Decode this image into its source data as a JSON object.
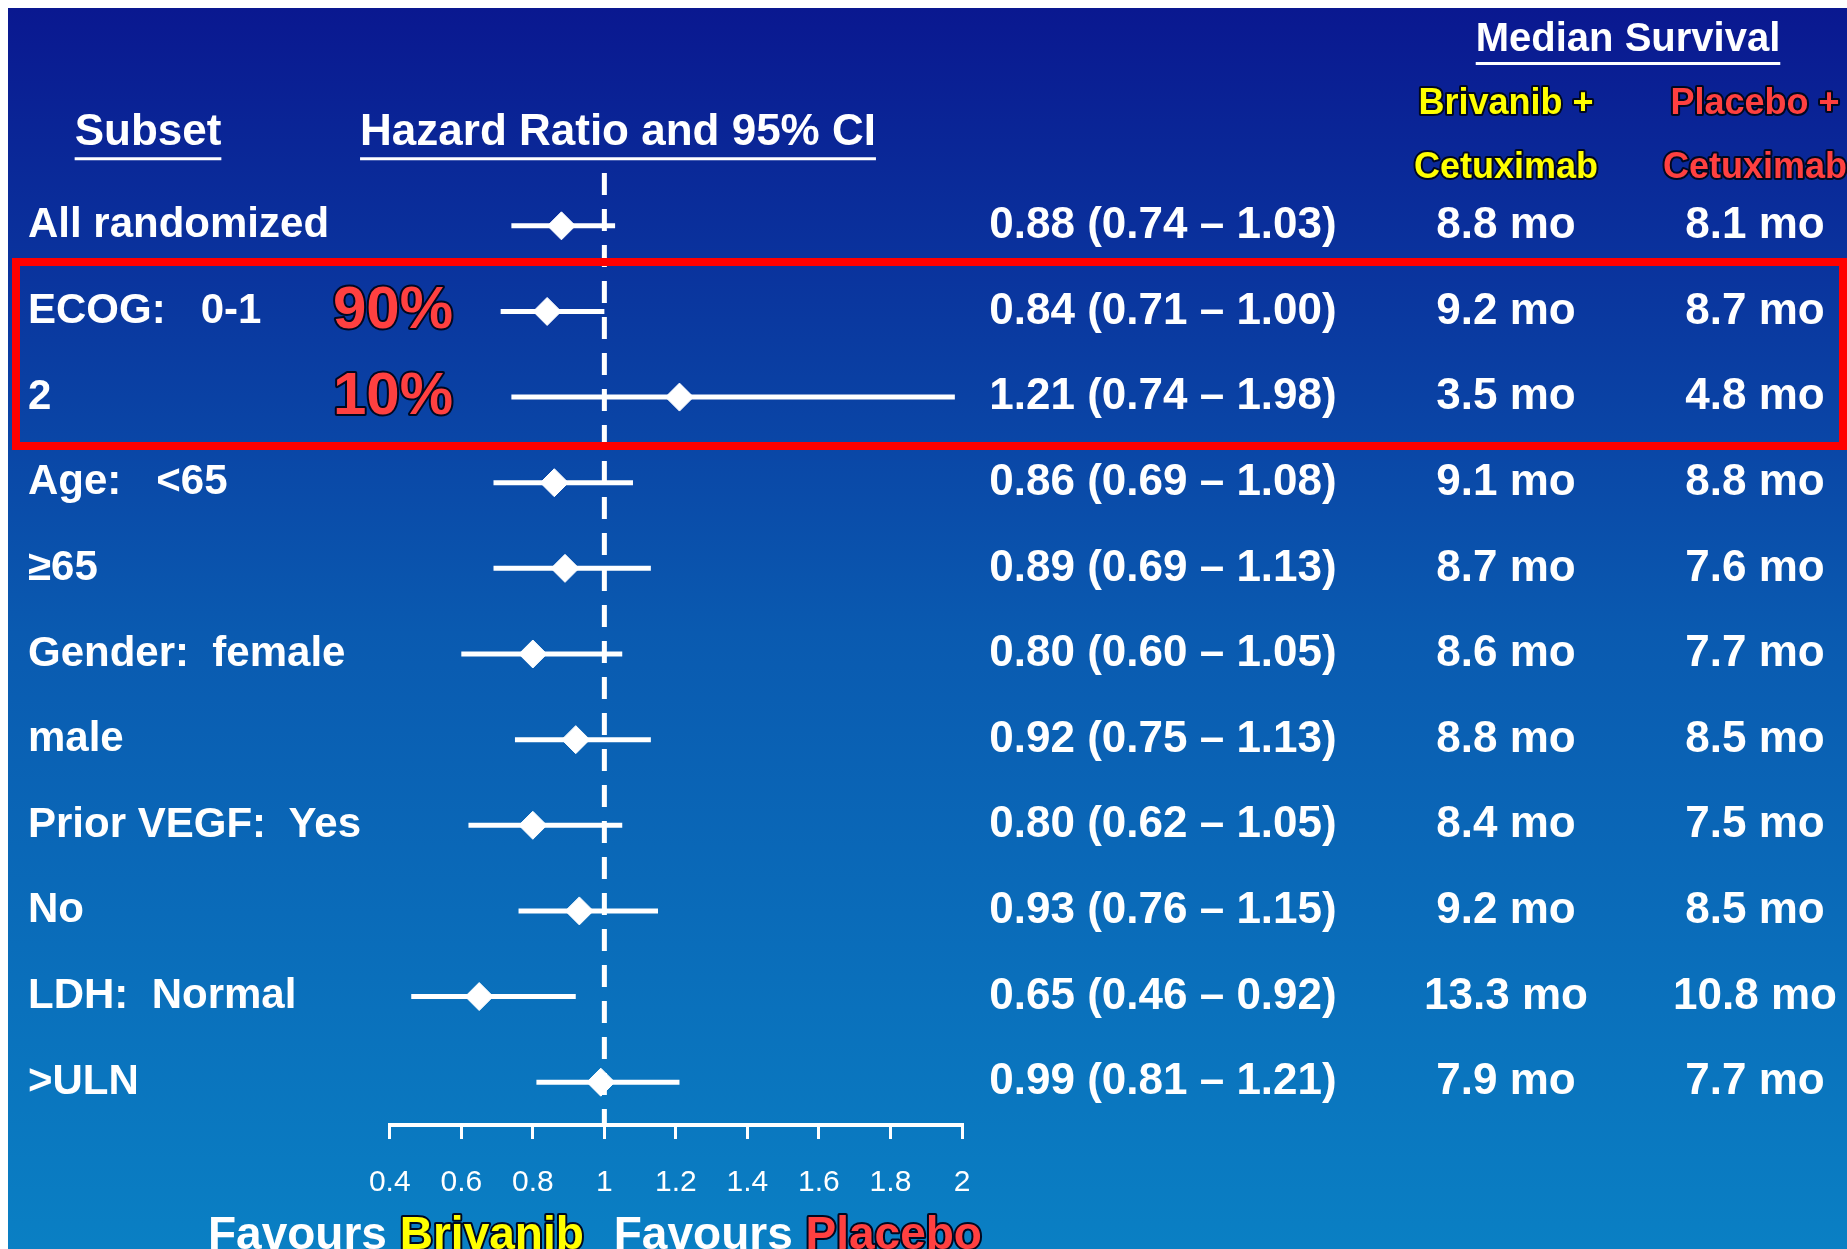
{
  "chart_data": {
    "type": "scatter",
    "orientation": "horizontal",
    "title": "Hazard Ratio and 95% CI",
    "ylabel": "Subset",
    "categories": [
      "All randomized",
      "ECOG:   0-1",
      "2",
      "Age:   <65",
      "≥65",
      "Gender:  female",
      "male",
      "Prior VEGF:  Yes",
      "No",
      "LDH:  Normal",
      ">ULN"
    ],
    "values": [
      0.88,
      0.84,
      1.21,
      0.86,
      0.89,
      0.8,
      0.92,
      0.8,
      0.93,
      0.65,
      0.99
    ],
    "errors": [
      [
        0.74,
        1.03
      ],
      [
        0.71,
        1.0
      ],
      [
        0.74,
        1.98
      ],
      [
        0.69,
        1.08
      ],
      [
        0.69,
        1.13
      ],
      [
        0.6,
        1.05
      ],
      [
        0.75,
        1.13
      ],
      [
        0.62,
        1.05
      ],
      [
        0.76,
        1.15
      ],
      [
        0.46,
        0.92
      ],
      [
        0.81,
        1.21
      ]
    ],
    "value_labels": [
      "0.88 (0.74 – 1.03)",
      "0.84 (0.71 – 1.00)",
      "1.21 (0.74 – 1.98)",
      "0.86 (0.69 – 1.08)",
      "0.89 (0.69 – 1.13)",
      "0.80 (0.60 – 1.05)",
      "0.92 (0.75 – 1.13)",
      "0.80 (0.62 – 1.05)",
      "0.93 (0.76 – 1.15)",
      "0.65 (0.46 – 0.92)",
      "0.99 (0.81 – 1.21)"
    ],
    "color": "#ffffff",
    "marker": "diamond",
    "xlim": [
      0.4,
      2
    ],
    "xticks": [
      0.4,
      0.6,
      0.8,
      1,
      1.2,
      1.4,
      1.6,
      1.8,
      2
    ],
    "grid": false,
    "legend": false,
    "ref_lines": [
      {
        "axis": "x",
        "value": 1,
        "line_style": "dashed",
        "color": "#ffffff"
      }
    ],
    "annotations": [
      "Median Survival",
      "Brivanib + Cetuximab",
      "Placebo + Cetuximab",
      "8.8 mo",
      "8.1 mo",
      "9.2 mo",
      "8.7 mo",
      "3.5 mo",
      "4.8 mo",
      "9.1 mo",
      "8.8 mo",
      "8.7 mo",
      "7.6 mo",
      "8.6 mo",
      "7.7 mo",
      "8.8 mo",
      "8.5 mo",
      "8.4 mo",
      "7.5 mo",
      "9.2 mo",
      "8.5 mo",
      "13.3 mo",
      "10.8 mo",
      "7.9 mo",
      "7.7 mo",
      "90%",
      "10%",
      "Favours Brivanib",
      "Favours Placebo"
    ]
  }
}
